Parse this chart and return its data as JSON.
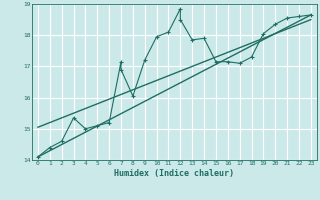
{
  "xlabel": "Humidex (Indice chaleur)",
  "bg_color": "#cce9e9",
  "grid_color": "#ffffff",
  "line_color": "#1e6e64",
  "xlim": [
    -0.5,
    23.5
  ],
  "ylim": [
    14,
    19
  ],
  "xticks": [
    0,
    1,
    2,
    3,
    4,
    5,
    6,
    7,
    8,
    9,
    10,
    11,
    12,
    13,
    14,
    15,
    16,
    17,
    18,
    19,
    20,
    21,
    22,
    23
  ],
  "yticks": [
    14,
    15,
    16,
    17,
    18,
    19
  ],
  "jagged_x": [
    0,
    1,
    2,
    3,
    4,
    5,
    6,
    7,
    7,
    8,
    9,
    10,
    11,
    12,
    12,
    13,
    14,
    15,
    16,
    17,
    18,
    19,
    20,
    21,
    22,
    23
  ],
  "jagged_y": [
    14.1,
    14.4,
    14.6,
    15.35,
    15.0,
    15.1,
    15.2,
    17.15,
    16.9,
    16.05,
    17.2,
    17.95,
    18.1,
    18.85,
    18.5,
    17.85,
    17.9,
    17.15,
    17.15,
    17.1,
    17.3,
    18.05,
    18.35,
    18.55,
    18.6,
    18.65
  ],
  "line1_x": [
    0,
    23
  ],
  "line1_y": [
    14.1,
    18.65
  ],
  "line2_x": [
    0,
    23
  ],
  "line2_y": [
    15.05,
    18.5
  ]
}
